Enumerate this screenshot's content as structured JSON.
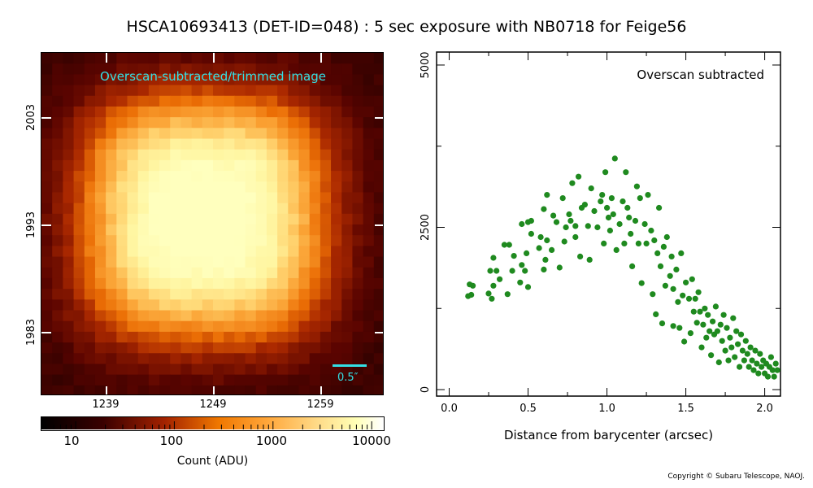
{
  "title": "HSCA10693413 (DET-ID=048) :  5 sec exposure with NB0718 for Feige56",
  "colors": {
    "accent_cyan": "#33e0e6",
    "scatter_green": "#1f8a1f"
  },
  "image_panel": {
    "annotation": "Overscan-subtracted/trimmed image",
    "scale_bar_label": "0.5″",
    "x_ticks": [
      "1239",
      "1249",
      "1259"
    ],
    "y_ticks": [
      "2003",
      "1993",
      "1983"
    ]
  },
  "colorbar": {
    "labels": [
      "10",
      "100",
      "1000",
      "10000"
    ],
    "title": "Count (ADU)",
    "scale": "log"
  },
  "copyright": "Copyright © Subaru Telescope, NAOJ.",
  "chart_data": {
    "type": "scatter",
    "title": "",
    "annotation": "Overscan subtracted",
    "xlabel": "Distance from barycenter (arcsec)",
    "ylabel": "",
    "xlim": [
      -0.08,
      2.1
    ],
    "ylim": [
      -100,
      5200
    ],
    "x_ticks": [
      "0.0",
      "0.5",
      "1.0",
      "1.5",
      "2.0"
    ],
    "y_ticks": [
      "0",
      "2500",
      "5000"
    ],
    "color": "#1f8a1f",
    "points": [
      [
        0.12,
        1440
      ],
      [
        0.13,
        1620
      ],
      [
        0.14,
        1460
      ],
      [
        0.15,
        1600
      ],
      [
        0.25,
        1480
      ],
      [
        0.26,
        1830
      ],
      [
        0.27,
        1400
      ],
      [
        0.28,
        2030
      ],
      [
        0.28,
        1600
      ],
      [
        0.3,
        1830
      ],
      [
        0.32,
        1700
      ],
      [
        0.35,
        2230
      ],
      [
        0.37,
        1470
      ],
      [
        0.38,
        2230
      ],
      [
        0.4,
        1830
      ],
      [
        0.41,
        2060
      ],
      [
        0.45,
        1650
      ],
      [
        0.46,
        1920
      ],
      [
        0.46,
        2550
      ],
      [
        0.48,
        1830
      ],
      [
        0.49,
        2100
      ],
      [
        0.5,
        1580
      ],
      [
        0.5,
        2580
      ],
      [
        0.52,
        2600
      ],
      [
        0.52,
        2400
      ],
      [
        0.57,
        2180
      ],
      [
        0.58,
        2350
      ],
      [
        0.6,
        2780
      ],
      [
        0.6,
        1850
      ],
      [
        0.61,
        2000
      ],
      [
        0.62,
        2300
      ],
      [
        0.62,
        3000
      ],
      [
        0.65,
        2150
      ],
      [
        0.66,
        2680
      ],
      [
        0.68,
        2580
      ],
      [
        0.7,
        1880
      ],
      [
        0.72,
        2950
      ],
      [
        0.73,
        2280
      ],
      [
        0.74,
        2500
      ],
      [
        0.76,
        2700
      ],
      [
        0.77,
        2600
      ],
      [
        0.78,
        3180
      ],
      [
        0.8,
        2520
      ],
      [
        0.8,
        2350
      ],
      [
        0.82,
        3280
      ],
      [
        0.83,
        2050
      ],
      [
        0.84,
        2800
      ],
      [
        0.86,
        2850
      ],
      [
        0.88,
        2520
      ],
      [
        0.89,
        2000
      ],
      [
        0.9,
        3100
      ],
      [
        0.92,
        2750
      ],
      [
        0.94,
        2500
      ],
      [
        0.96,
        2900
      ],
      [
        0.97,
        3000
      ],
      [
        0.98,
        2250
      ],
      [
        0.99,
        3350
      ],
      [
        1.0,
        2800
      ],
      [
        1.01,
        2650
      ],
      [
        1.02,
        2450
      ],
      [
        1.03,
        2950
      ],
      [
        1.04,
        2700
      ],
      [
        1.05,
        3560
      ],
      [
        1.06,
        2150
      ],
      [
        1.08,
        2550
      ],
      [
        1.1,
        2900
      ],
      [
        1.11,
        2250
      ],
      [
        1.12,
        3350
      ],
      [
        1.13,
        2800
      ],
      [
        1.14,
        2650
      ],
      [
        1.15,
        2400
      ],
      [
        1.16,
        1900
      ],
      [
        1.18,
        2600
      ],
      [
        1.19,
        3130
      ],
      [
        1.2,
        2250
      ],
      [
        1.21,
        2950
      ],
      [
        1.22,
        1640
      ],
      [
        1.24,
        2550
      ],
      [
        1.25,
        2250
      ],
      [
        1.26,
        3000
      ],
      [
        1.28,
        2450
      ],
      [
        1.29,
        1470
      ],
      [
        1.3,
        2300
      ],
      [
        1.31,
        1160
      ],
      [
        1.32,
        2100
      ],
      [
        1.33,
        2800
      ],
      [
        1.34,
        1900
      ],
      [
        1.35,
        1020
      ],
      [
        1.36,
        2200
      ],
      [
        1.37,
        1600
      ],
      [
        1.38,
        2350
      ],
      [
        1.4,
        1750
      ],
      [
        1.41,
        2050
      ],
      [
        1.42,
        1550
      ],
      [
        1.42,
        980
      ],
      [
        1.44,
        1850
      ],
      [
        1.45,
        1350
      ],
      [
        1.46,
        950
      ],
      [
        1.47,
        2100
      ],
      [
        1.48,
        1450
      ],
      [
        1.49,
        740
      ],
      [
        1.5,
        1650
      ],
      [
        1.52,
        1400
      ],
      [
        1.53,
        870
      ],
      [
        1.54,
        1700
      ],
      [
        1.55,
        1200
      ],
      [
        1.56,
        1400
      ],
      [
        1.57,
        1030
      ],
      [
        1.58,
        1500
      ],
      [
        1.59,
        1200
      ],
      [
        1.6,
        650
      ],
      [
        1.61,
        1000
      ],
      [
        1.62,
        1250
      ],
      [
        1.63,
        800
      ],
      [
        1.64,
        1150
      ],
      [
        1.65,
        900
      ],
      [
        1.66,
        530
      ],
      [
        1.67,
        1050
      ],
      [
        1.68,
        850
      ],
      [
        1.69,
        1280
      ],
      [
        1.7,
        900
      ],
      [
        1.71,
        420
      ],
      [
        1.72,
        1000
      ],
      [
        1.73,
        750
      ],
      [
        1.74,
        1150
      ],
      [
        1.75,
        600
      ],
      [
        1.76,
        950
      ],
      [
        1.77,
        450
      ],
      [
        1.78,
        800
      ],
      [
        1.79,
        650
      ],
      [
        1.8,
        1100
      ],
      [
        1.81,
        500
      ],
      [
        1.82,
        900
      ],
      [
        1.83,
        700
      ],
      [
        1.84,
        350
      ],
      [
        1.85,
        850
      ],
      [
        1.86,
        600
      ],
      [
        1.87,
        450
      ],
      [
        1.88,
        750
      ],
      [
        1.89,
        550
      ],
      [
        1.9,
        350
      ],
      [
        1.91,
        650
      ],
      [
        1.92,
        450
      ],
      [
        1.93,
        300
      ],
      [
        1.94,
        600
      ],
      [
        1.95,
        400
      ],
      [
        1.96,
        250
      ],
      [
        1.97,
        550
      ],
      [
        1.98,
        350
      ],
      [
        1.99,
        450
      ],
      [
        2.0,
        250
      ],
      [
        2.01,
        400
      ],
      [
        2.02,
        200
      ],
      [
        2.03,
        350
      ],
      [
        2.04,
        500
      ],
      [
        2.05,
        300
      ],
      [
        2.06,
        200
      ],
      [
        2.07,
        400
      ],
      [
        2.08,
        300
      ]
    ]
  }
}
